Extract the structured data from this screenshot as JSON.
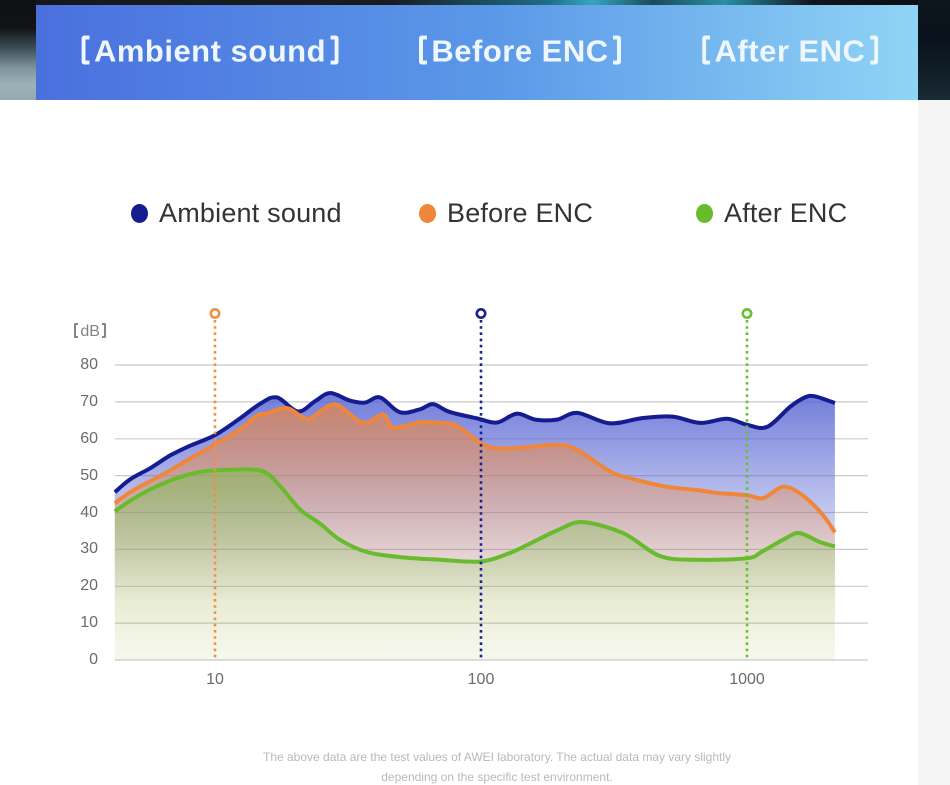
{
  "banner": {
    "items": [
      "【Ambient sound】",
      "【Before ENC】",
      "【After ENC】"
    ]
  },
  "legend": {
    "items": [
      {
        "label": "Ambient sound",
        "color": "#151c8f"
      },
      {
        "label": "Before ENC",
        "color": "#f0863a"
      },
      {
        "label": "After ENC",
        "color": "#67bb2d"
      }
    ]
  },
  "chart_data": {
    "type": "area",
    "y_axis_label": "【dB】",
    "ylim": [
      0,
      80
    ],
    "y_ticks": [
      80,
      70,
      60,
      50,
      40,
      30,
      20,
      10,
      0
    ],
    "x_scale": "log",
    "x_ticks": [
      10,
      100,
      1000
    ],
    "x_range": [
      4.2,
      2140
    ],
    "grid": true,
    "grid_color": "#c9cacb",
    "series": [
      {
        "name": "Ambient sound",
        "color": "#151c8f",
        "fill": "#5563d2",
        "points": [
          [
            4.2,
            45.5
          ],
          [
            4.8,
            49.0
          ],
          [
            5.7,
            52.0
          ],
          [
            6.8,
            55.5
          ],
          [
            8.0,
            58.0
          ],
          [
            10,
            61.0
          ],
          [
            12.4,
            65.5
          ],
          [
            14.8,
            69.5
          ],
          [
            17.1,
            71.2
          ],
          [
            20.5,
            67.4
          ],
          [
            23.8,
            70.2
          ],
          [
            27.1,
            72.4
          ],
          [
            32,
            70.4
          ],
          [
            36.6,
            69.8
          ],
          [
            41.7,
            71.2
          ],
          [
            49.5,
            67.2
          ],
          [
            59,
            68.0
          ],
          [
            66,
            69.4
          ],
          [
            76,
            67.3
          ],
          [
            97,
            65.5
          ],
          [
            115,
            64.4
          ],
          [
            136,
            66.8
          ],
          [
            160,
            65.2
          ],
          [
            193,
            65.2
          ],
          [
            230,
            67.0
          ],
          [
            305,
            64.2
          ],
          [
            404,
            65.6
          ],
          [
            525,
            66.0
          ],
          [
            665,
            64.3
          ],
          [
            840,
            65.4
          ],
          [
            1000,
            63.8
          ],
          [
            1190,
            63.2
          ],
          [
            1450,
            68.6
          ],
          [
            1650,
            71.2
          ],
          [
            1800,
            71.5
          ],
          [
            2140,
            69.7
          ]
        ]
      },
      {
        "name": "Before ENC",
        "color": "#f0863a",
        "fill": "#f0863a",
        "points": [
          [
            4.2,
            42.5
          ],
          [
            4.8,
            45.5
          ],
          [
            5.7,
            48.5
          ],
          [
            6.8,
            51.5
          ],
          [
            8.0,
            54.5
          ],
          [
            10,
            58.5
          ],
          [
            12.4,
            62.5
          ],
          [
            14.4,
            66.3
          ],
          [
            15.7,
            66.9
          ],
          [
            18.7,
            68.3
          ],
          [
            22.2,
            65.3
          ],
          [
            25.3,
            67.8
          ],
          [
            28.8,
            69.2
          ],
          [
            36,
            64.3
          ],
          [
            42.8,
            66.6
          ],
          [
            46.7,
            63.0
          ],
          [
            59,
            64.5
          ],
          [
            70,
            64.3
          ],
          [
            81,
            63.6
          ],
          [
            100,
            58.8
          ],
          [
            115,
            57.4
          ],
          [
            150,
            57.7
          ],
          [
            193,
            58.4
          ],
          [
            230,
            57.0
          ],
          [
            305,
            51.2
          ],
          [
            363,
            49.3
          ],
          [
            500,
            47.0
          ],
          [
            665,
            46.0
          ],
          [
            775,
            45.3
          ],
          [
            1000,
            44.7
          ],
          [
            1150,
            43.9
          ],
          [
            1365,
            47.0
          ],
          [
            1580,
            45.2
          ],
          [
            1830,
            41.2
          ],
          [
            2010,
            37.6
          ],
          [
            2140,
            34.6
          ]
        ]
      },
      {
        "name": "After ENC",
        "color": "#67bb2d",
        "fill": "#7cc24a",
        "points": [
          [
            4.2,
            40.3
          ],
          [
            5.0,
            44.0
          ],
          [
            6.2,
            47.5
          ],
          [
            7.7,
            50.0
          ],
          [
            9.2,
            51.2
          ],
          [
            11.4,
            51.6
          ],
          [
            15.0,
            51.3
          ],
          [
            17.5,
            47.3
          ],
          [
            20.9,
            40.8
          ],
          [
            24.8,
            37.0
          ],
          [
            29.5,
            32.6
          ],
          [
            37.2,
            29.3
          ],
          [
            49.5,
            27.9
          ],
          [
            70,
            27.2
          ],
          [
            100,
            26.7
          ],
          [
            128,
            29.0
          ],
          [
            153,
            31.6
          ],
          [
            198,
            35.5
          ],
          [
            242,
            37.4
          ],
          [
            342,
            34.4
          ],
          [
            471,
            28.2
          ],
          [
            649,
            27.2
          ],
          [
            1000,
            27.6
          ],
          [
            1140,
            29.4
          ],
          [
            1413,
            33.2
          ],
          [
            1580,
            34.4
          ],
          [
            1880,
            32.0
          ],
          [
            2140,
            30.8
          ]
        ]
      }
    ],
    "guides": [
      {
        "x": 10,
        "color": "#ef9140"
      },
      {
        "x": 100,
        "color": "#1a2292"
      },
      {
        "x": 1000,
        "color": "#6abe2f"
      }
    ],
    "legend_position": "top"
  },
  "footer": {
    "line1": "The above data are the test values of AWEI laboratory. The actual data may vary slightly",
    "line2": "depending on the specific test environment."
  }
}
